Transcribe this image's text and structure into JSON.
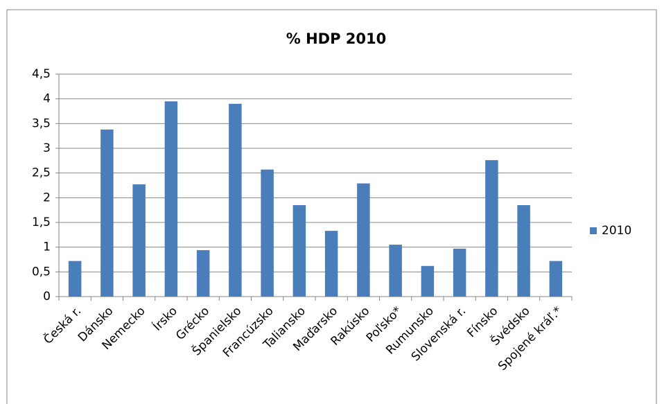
{
  "chart_data": {
    "type": "bar",
    "title": "% HDP 2010",
    "categories": [
      "Česká r.",
      "Dánsko",
      "Nemecko",
      "Írsko",
      "Grécko",
      "Španielsko",
      "Francúzsko",
      "Taliansko",
      "Maďarsko",
      "Rakúsko",
      "Poľsko*",
      "Rumunsko",
      "Slovenská r.",
      "Fínsko",
      "Švédsko",
      "Spojené kráľ.*"
    ],
    "series": [
      {
        "name": "2010",
        "color": "#4a7ebb",
        "values": [
          0.72,
          3.38,
          2.27,
          3.95,
          0.94,
          3.9,
          2.57,
          1.85,
          1.33,
          2.29,
          1.05,
          0.62,
          0.97,
          2.76,
          1.85,
          0.72
        ]
      }
    ],
    "ylim": [
      0,
      4.5
    ],
    "yticks": [
      0,
      {
        "value": 0.5,
        "label": "0,5"
      },
      1,
      {
        "value": 1.5,
        "label": "1,5"
      },
      2,
      {
        "value": 2.5,
        "label": "2,5"
      },
      3,
      {
        "value": 3.5,
        "label": "3,5"
      },
      4,
      {
        "value": 4.5,
        "label": "4,5"
      }
    ],
    "grid": true,
    "legend": "right"
  }
}
